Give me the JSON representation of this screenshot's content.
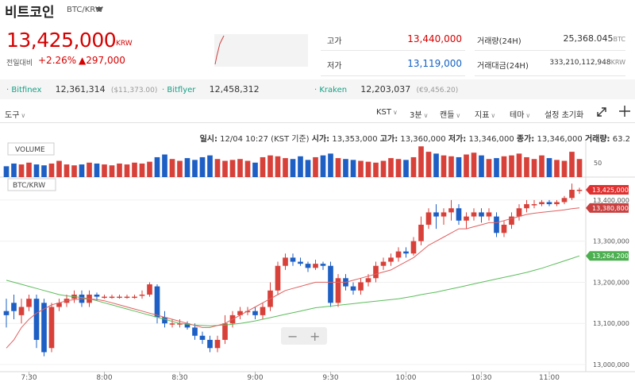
{
  "header": {
    "title": "비트코인",
    "pair": "BTC/KRW"
  },
  "ticker": {
    "price": "13,425,000",
    "unit": "KRW",
    "change_label": "전일대비",
    "change_pct": "+2.26%",
    "change_amt": "▲297,000"
  },
  "stats": {
    "high_label": "고가",
    "high_value": "13,440,000",
    "low_label": "저가",
    "low_value": "13,119,000",
    "volume_label": "거래량(24H)",
    "volume_value": "25,368.045",
    "volume_unit": "BTC",
    "amount_label": "거래대금(24H)",
    "amount_value": "333,210,112,948",
    "amount_unit": "KRW"
  },
  "exchanges": [
    {
      "name": "Bitfinex",
      "price": "12,361,314",
      "sub": "($11,373.00)"
    },
    {
      "name": "Bitflyer",
      "price": "12,458,312",
      "sub": ""
    },
    {
      "name": "Kraken",
      "price": "12,203,037",
      "sub": "(€9,456.20)"
    }
  ],
  "toolbar": {
    "tools": "도구",
    "timezone": "KST",
    "interval": "3분",
    "chart_type": "캔들",
    "indicators": "지표",
    "theme": "테마",
    "reset": "설정 초기화"
  },
  "info": {
    "time_label": "일시:",
    "time_value": "12/04 10:27 (KST 기준)",
    "open_label": "시가:",
    "open_value": "13,353,000",
    "high_label": "고가:",
    "high_value": "13,360,000",
    "low_label": "저가:",
    "low_value": "13,346,000",
    "close_label": "종가:",
    "close_value": "13,346,000",
    "vol_label": "거래량:",
    "vol_value": "63.2"
  },
  "colors": {
    "up": "#d8413a",
    "down": "#1d5fc4",
    "ma_short": "#e06060",
    "ma_long": "#5cbd5c",
    "price_tag": "#e03030",
    "ma_tag": "#c84040",
    "ma2_tag": "#4caf50"
  },
  "chart_data": {
    "type": "candlestick",
    "volume_label": "VOLUME",
    "price_label": "BTC/KRW",
    "ylim": [
      13000000,
      13450000
    ],
    "y_ticks": [
      "13,400,000",
      "13,300,000",
      "13,200,000",
      "13,100,000",
      "13,000,000"
    ],
    "y_tick_values": [
      13400000,
      13300000,
      13200000,
      13100000,
      13000000
    ],
    "volume_tick": "50",
    "x_ticks": [
      "7:30",
      "8:00",
      "8:30",
      "9:00",
      "9:30",
      "10:00",
      "10:30",
      "11:00"
    ],
    "tags": {
      "last": "13,425,000",
      "ma_short": "13,380,800",
      "ma_long": "13,264,200"
    },
    "last_value": 13425000,
    "ma_short_value": 13380800,
    "ma_long_value": 13264200,
    "candles": [
      [
        13130000,
        13120000,
        13160000,
        13090000
      ],
      [
        13150000,
        13130000,
        13170000,
        13110000
      ],
      [
        13120000,
        13140000,
        13160000,
        13100000
      ],
      [
        13140000,
        13160000,
        13170000,
        13130000
      ],
      [
        13160000,
        13060000,
        13170000,
        13040000
      ],
      [
        13150000,
        13030000,
        13160000,
        13020000
      ],
      [
        13040000,
        13140000,
        13150000,
        13030000
      ],
      [
        13140000,
        13150000,
        13160000,
        13130000
      ],
      [
        13150000,
        13160000,
        13170000,
        13140000
      ],
      [
        13160000,
        13170000,
        13180000,
        13150000
      ],
      [
        13170000,
        13150000,
        13180000,
        13140000
      ],
      [
        13150000,
        13170000,
        13180000,
        13140000
      ],
      [
        13170000,
        13165000,
        13175000,
        13155000
      ],
      [
        13165000,
        13165000,
        13170000,
        13160000
      ],
      [
        13165000,
        13165000,
        13170000,
        13160000
      ],
      [
        13165000,
        13165000,
        13170000,
        13160000
      ],
      [
        13165000,
        13165000,
        13170000,
        13160000
      ],
      [
        13165000,
        13165000,
        13170000,
        13160000
      ],
      [
        13170000,
        13170000,
        13180000,
        13160000
      ],
      [
        13170000,
        13195000,
        13200000,
        13165000
      ],
      [
        13190000,
        13115000,
        13195000,
        13100000
      ],
      [
        13115000,
        13100000,
        13130000,
        13090000
      ],
      [
        13100000,
        13100000,
        13110000,
        13090000
      ],
      [
        13100000,
        13100000,
        13110000,
        13090000
      ],
      [
        13100000,
        13090000,
        13105000,
        13085000
      ],
      [
        13090000,
        13070000,
        13100000,
        13060000
      ],
      [
        13070000,
        13060000,
        13080000,
        13050000
      ],
      [
        13060000,
        13040000,
        13070000,
        13030000
      ],
      [
        13040000,
        13060000,
        13070000,
        13030000
      ],
      [
        13060000,
        13100000,
        13120000,
        13050000
      ],
      [
        13100000,
        13120000,
        13130000,
        13090000
      ],
      [
        13120000,
        13130000,
        13140000,
        13110000
      ],
      [
        13130000,
        13130000,
        13140000,
        13120000
      ],
      [
        13130000,
        13120000,
        13140000,
        13110000
      ],
      [
        13120000,
        13140000,
        13150000,
        13110000
      ],
      [
        13140000,
        13180000,
        13200000,
        13130000
      ],
      [
        13180000,
        13240000,
        13250000,
        13170000
      ],
      [
        13240000,
        13260000,
        13270000,
        13230000
      ],
      [
        13260000,
        13250000,
        13270000,
        13240000
      ],
      [
        13250000,
        13245000,
        13260000,
        13240000
      ],
      [
        13245000,
        13235000,
        13250000,
        13225000
      ],
      [
        13235000,
        13245000,
        13255000,
        13230000
      ],
      [
        13245000,
        13240000,
        13250000,
        13230000
      ],
      [
        13240000,
        13150000,
        13250000,
        13140000
      ],
      [
        13150000,
        13210000,
        13220000,
        13140000
      ],
      [
        13210000,
        13190000,
        13220000,
        13180000
      ],
      [
        13190000,
        13180000,
        13200000,
        13170000
      ],
      [
        13180000,
        13200000,
        13210000,
        13170000
      ],
      [
        13200000,
        13210000,
        13220000,
        13190000
      ],
      [
        13210000,
        13240000,
        13250000,
        13200000
      ],
      [
        13240000,
        13250000,
        13260000,
        13230000
      ],
      [
        13250000,
        13260000,
        13270000,
        13240000
      ],
      [
        13260000,
        13275000,
        13285000,
        13250000
      ],
      [
        13275000,
        13270000,
        13285000,
        13260000
      ],
      [
        13270000,
        13300000,
        13310000,
        13265000
      ],
      [
        13300000,
        13340000,
        13360000,
        13290000
      ],
      [
        13340000,
        13370000,
        13380000,
        13330000
      ],
      [
        13370000,
        13360000,
        13390000,
        13330000
      ],
      [
        13360000,
        13370000,
        13380000,
        13340000
      ],
      [
        13370000,
        13380000,
        13400000,
        13350000
      ],
      [
        13380000,
        13350000,
        13390000,
        13340000
      ],
      [
        13350000,
        13360000,
        13370000,
        13330000
      ],
      [
        13360000,
        13370000,
        13380000,
        13350000
      ],
      [
        13370000,
        13360000,
        13380000,
        13345000
      ],
      [
        13360000,
        13370000,
        13380000,
        13350000
      ],
      [
        13360000,
        13320000,
        13370000,
        13310000
      ],
      [
        13320000,
        13340000,
        13350000,
        13310000
      ],
      [
        13340000,
        13360000,
        13370000,
        13330000
      ],
      [
        13360000,
        13380000,
        13390000,
        13350000
      ],
      [
        13380000,
        13390000,
        13400000,
        13370000
      ],
      [
        13390000,
        13390000,
        13400000,
        13380000
      ],
      [
        13390000,
        13395000,
        13400000,
        13385000
      ],
      [
        13395000,
        13390000,
        13400000,
        13385000
      ],
      [
        13390000,
        13395000,
        13400000,
        13385000
      ],
      [
        13395000,
        13405000,
        13410000,
        13390000
      ],
      [
        13405000,
        13425000,
        13440000,
        13400000
      ],
      [
        13425000,
        13425000,
        13430000,
        13415000
      ]
    ],
    "volumes": [
      12,
      15,
      14,
      16,
      14,
      13,
      15,
      18,
      14,
      13,
      14,
      16,
      15,
      14,
      13,
      15,
      14,
      16,
      15,
      17,
      22,
      25,
      20,
      18,
      21,
      19,
      22,
      24,
      20,
      18,
      19,
      20,
      18,
      16,
      22,
      24,
      23,
      21,
      20,
      23,
      19,
      22,
      24,
      26,
      21,
      20,
      19,
      18,
      17,
      16,
      18,
      21,
      20,
      19,
      22,
      34,
      28,
      26,
      24,
      23,
      22,
      25,
      27,
      24,
      20,
      21,
      23,
      24,
      26,
      22,
      20,
      24,
      21,
      19,
      18,
      28,
      20
    ],
    "ma_short": [
      13040000,
      13060000,
      13090000,
      13110000,
      13125000,
      13135000,
      13145000,
      13150000,
      13155000,
      13158000,
      13160000,
      13160000,
      13158000,
      13155000,
      13150000,
      13145000,
      13140000,
      13135000,
      13130000,
      13125000,
      13120000,
      13115000,
      13110000,
      13105000,
      13100000,
      13095000,
      13090000,
      13090000,
      13095000,
      13100000,
      13110000,
      13120000,
      13130000,
      13140000,
      13150000,
      13160000,
      13170000,
      13180000,
      13185000,
      13190000,
      13195000,
      13200000,
      13200000,
      13200000,
      13200000,
      13200000,
      13205000,
      13210000,
      13215000,
      13220000,
      13225000,
      13230000,
      13240000,
      13250000,
      13260000,
      13275000,
      13290000,
      13300000,
      13310000,
      13320000,
      13330000,
      13330000,
      13335000,
      13340000,
      13345000,
      13345000,
      13350000,
      13355000,
      13360000,
      13365000,
      13368000,
      13370000,
      13372000,
      13374000,
      13376000,
      13379000,
      13380800
    ],
    "ma_long": [
      13205000,
      13200000,
      13195000,
      13190000,
      13185000,
      13180000,
      13175000,
      13170000,
      13167000,
      13165000,
      13163000,
      13160000,
      13155000,
      13150000,
      13145000,
      13140000,
      13135000,
      13130000,
      13125000,
      13120000,
      13115000,
      13110000,
      13105000,
      13100000,
      13098000,
      13096000,
      13095000,
      13094000,
      13095000,
      13096000,
      13098000,
      13100000,
      13103000,
      13106000,
      13110000,
      13114000,
      13118000,
      13122000,
      13126000,
      13130000,
      13134000,
      13138000,
      13140000,
      13142000,
      13144000,
      13146000,
      13148000,
      13150000,
      13152000,
      13154000,
      13156000,
      13158000,
      13160000,
      13163000,
      13166000,
      13170000,
      13173000,
      13176000,
      13180000,
      13184000,
      13188000,
      13192000,
      13196000,
      13200000,
      13204000,
      13208000,
      13212000,
      13216000,
      13220000,
      13224000,
      13229000,
      13234000,
      13240000,
      13246000,
      13252000,
      13258000,
      13264200
    ]
  }
}
